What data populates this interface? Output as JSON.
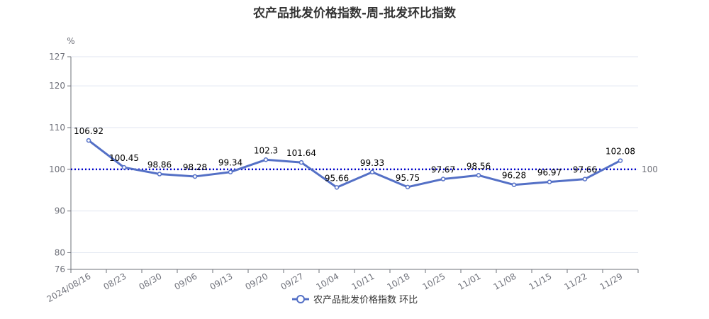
{
  "page": {
    "title": "农产品批发价格指数-周-批发环比指数"
  },
  "chart_data": {
    "type": "line",
    "title": "农产品批发价格指数-周-批发环比指数",
    "y_unit": "%",
    "ylim": [
      76,
      127
    ],
    "y_ticks": [
      76,
      80,
      90,
      100,
      110,
      120,
      127
    ],
    "categories": [
      "2024/08/16",
      "08/23",
      "08/30",
      "09/06",
      "09/13",
      "09/20",
      "09/27",
      "10/04",
      "10/11",
      "10/18",
      "10/25",
      "11/01",
      "11/08",
      "11/15",
      "11/22",
      "11/29"
    ],
    "series": [
      {
        "name": "农产品批发价格指数 环比",
        "values": [
          106.92,
          100.45,
          98.86,
          98.28,
          99.34,
          102.3,
          101.64,
          95.66,
          99.33,
          95.75,
          97.67,
          98.56,
          96.28,
          96.97,
          97.66,
          102.08
        ],
        "color": "#5470c6"
      }
    ],
    "reference_line": {
      "value": 100,
      "label": "100",
      "color": "#0000cc",
      "style": "dotted"
    },
    "grid": true,
    "legend_position": "bottom-center"
  }
}
